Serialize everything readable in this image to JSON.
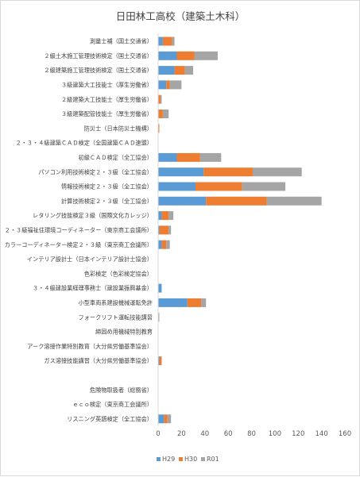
{
  "chart_data": {
    "type": "bar",
    "orientation": "horizontal",
    "stacked": true,
    "title": "日田林工高校（建築土木科）",
    "xlabel": "",
    "ylabel": "",
    "xlim": [
      0,
      160
    ],
    "xticks": [
      0,
      20,
      40,
      60,
      80,
      100,
      120,
      140,
      160
    ],
    "grid": false,
    "legend_position": "bottom",
    "categories": [
      "測量士補（国土交通省）",
      "２級土木施工管理技術検定（国土交通省）",
      "２級建築施工管理技術検定（国土交通省）",
      "３級建築大工技能士（厚生労働省）",
      "２級建築大工技能士（厚生労働省）",
      "３級建築配管技能士（厚生労働省）",
      "防災士（日本防災士機構）",
      "２・３・４級建築ＣＡＤ検定（全国建築ＣＡＤ連盟）",
      "初級ＣＡＤ検定（全工協会）",
      "パソコン利用技術検定２・３級（全工協会）",
      "情報技術検定２・３級（全工協会）",
      "計算技術検定２・３級（全工協会）",
      "レタリング技能検定３級（国際文化カレッジ）",
      "２・３級福祉住環境コーディネーター（東京商工会議所）",
      "カラーコーディネーター検定２・３級（東京商工会議所）",
      "インテリア設計士（日本インテリア設計士協会）",
      "色彩検定（色彩検定協会）",
      "３・４級建設業経理事務士（建設業振興基金）",
      "小型車両系建設機械運転免許",
      "フォークリフト運転技能講習",
      "締固め用機械特別教育",
      "アーク溶接作業特別教育（大分県労働基準協会）",
      "ガス溶接技能講習（大分県労働基準協会）",
      "",
      "危険物取扱者（総務省）",
      "ｅｃｏ検定（東京商工会議所）",
      "リスニング英語検定（全工協会）"
    ],
    "series": [
      {
        "name": "H29",
        "color": "#5b9bd5",
        "values": [
          4,
          16,
          14,
          7,
          0,
          0,
          0,
          0,
          16,
          39,
          32,
          41,
          3,
          1,
          3,
          0,
          0,
          3,
          25,
          0,
          0,
          0,
          1,
          0,
          0,
          0,
          5
        ]
      },
      {
        "name": "H30",
        "color": "#ed7d31",
        "values": [
          8,
          15,
          9,
          3,
          2,
          4,
          1,
          0,
          20,
          42,
          40,
          52,
          6,
          8,
          4,
          0,
          0,
          0,
          12,
          0,
          0,
          0,
          2,
          0,
          0,
          0,
          3
        ]
      },
      {
        "name": "R01",
        "color": "#a5a5a5",
        "values": [
          2,
          20,
          7,
          10,
          1,
          5,
          0,
          0,
          18,
          42,
          37,
          47,
          4,
          2,
          3,
          0,
          0,
          0,
          4,
          1,
          0,
          0,
          0,
          0,
          0,
          0,
          3
        ]
      }
    ]
  }
}
